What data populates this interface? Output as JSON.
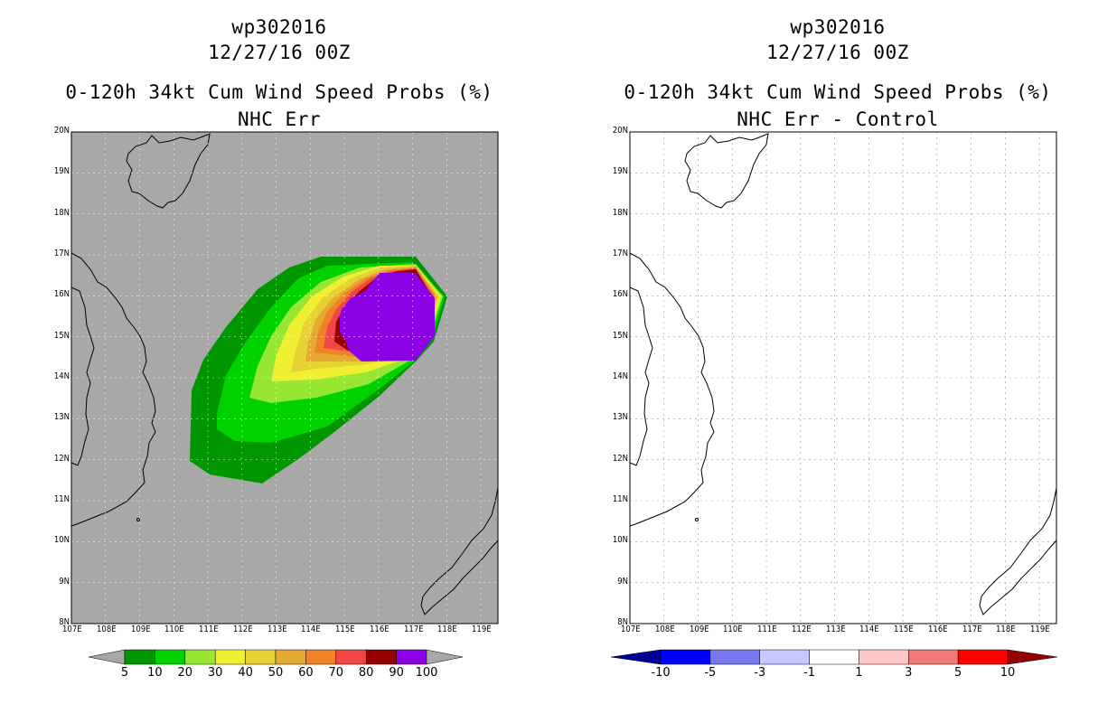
{
  "panels": [
    {
      "id": "left",
      "title_line1": "wp302016",
      "title_line2": "12/27/16 00Z",
      "title_line3": "0-120h 34kt Cum Wind Speed Probs (%)",
      "title_line4": "NHC Err",
      "background_color": "#a8a8a8",
      "colorbar": {
        "labels": [
          "5",
          "10",
          "20",
          "30",
          "40",
          "50",
          "60",
          "70",
          "80",
          "90",
          "100"
        ],
        "colors": [
          "#009600",
          "#00d200",
          "#96e632",
          "#f0f032",
          "#e6d232",
          "#e6aa32",
          "#f08228",
          "#f04646",
          "#960000",
          "#8c00e6"
        ],
        "under_color": "#a8a8a8",
        "over_color": "#a8a8a8"
      }
    },
    {
      "id": "right",
      "title_line1": "wp302016",
      "title_line2": "12/27/16 00Z",
      "title_line3": "0-120h 34kt Cum Wind Speed Probs (%)",
      "title_line4": "NHC Err - Control",
      "background_color": "#ffffff",
      "colorbar": {
        "labels": [
          "-10",
          "-5",
          "-3",
          "-1",
          "1",
          "3",
          "5",
          "10"
        ],
        "colors": [
          "#0000ff",
          "#7878f0",
          "#c8c8ff",
          "#ffffff",
          "#ffc8c8",
          "#f07878",
          "#ff0000"
        ],
        "under_color": "#000096",
        "over_color": "#960000"
      }
    }
  ],
  "axes": {
    "lon_ticks": [
      "107E",
      "108E",
      "109E",
      "110E",
      "111E",
      "112E",
      "113E",
      "114E",
      "115E",
      "116E",
      "117E",
      "118E",
      "119E"
    ],
    "lat_ticks": [
      "8N",
      "9N",
      "10N",
      "11N",
      "12N",
      "13N",
      "14N",
      "15N",
      "16N",
      "17N",
      "18N",
      "19N",
      "20N"
    ],
    "lon_range": [
      107,
      119.5
    ],
    "lat_range": [
      8,
      20
    ]
  }
}
